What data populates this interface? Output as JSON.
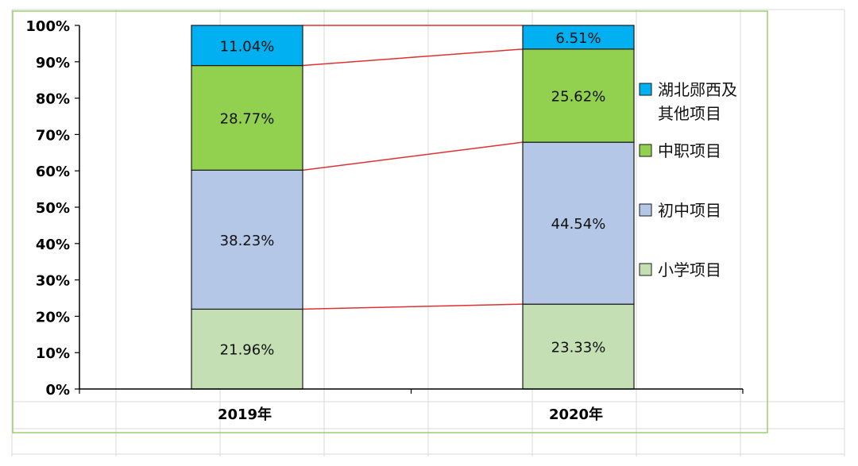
{
  "chart_data": {
    "type": "bar",
    "stacked": true,
    "percent": true,
    "categories": [
      "2019年",
      "2020年"
    ],
    "series": [
      {
        "name": "小学项目",
        "values": [
          21.96,
          23.33
        ],
        "labels": [
          "21.96%",
          "23.33%"
        ],
        "color": "#c5dfb4"
      },
      {
        "name": "初中项目",
        "values": [
          38.23,
          44.54
        ],
        "labels": [
          "38.23%",
          "44.54%"
        ],
        "color": "#b4c7e7"
      },
      {
        "name": "中职项目",
        "values": [
          28.77,
          25.62
        ],
        "labels": [
          "28.77%",
          "25.62%"
        ],
        "color": "#92d050"
      },
      {
        "name": "湖北郧西及其他项目",
        "values": [
          11.04,
          6.51
        ],
        "labels": [
          "11.04%",
          "6.51%"
        ],
        "color": "#00b0f0"
      }
    ],
    "yticks": [
      "0%",
      "10%",
      "20%",
      "30%",
      "40%",
      "50%",
      "60%",
      "70%",
      "80%",
      "90%",
      "100%"
    ],
    "ylim": [
      0,
      100
    ],
    "legend": {
      "position": "right",
      "order": [
        3,
        2,
        1,
        0
      ],
      "lines": [
        [
          "湖北郧西及",
          "其他项目"
        ],
        [
          "中职项目"
        ],
        [
          "初中项目"
        ],
        [
          "小学项目"
        ]
      ]
    },
    "series_lines_color": "#e03030",
    "grid": false,
    "title": "",
    "xlabel": "",
    "ylabel": ""
  }
}
